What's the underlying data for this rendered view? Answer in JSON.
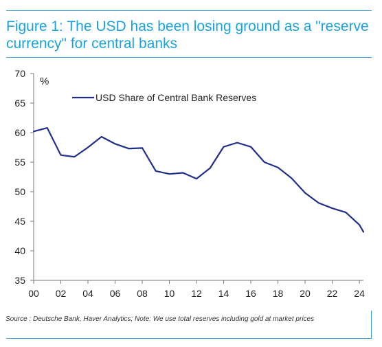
{
  "figure": {
    "title_line_1": "Figure 1: The USD has been losing ground as a \"reserve",
    "title_line_2": "currency\" for central banks",
    "source": "Source : Deutsche Bank, Haver Analytics; Note: We use total reserves including gold at market prices"
  },
  "colors": {
    "series": "#1f2e8c",
    "title": "#19a3df",
    "rule": "#3a9fd8",
    "axis": "#777777"
  },
  "chart_data": {
    "type": "line",
    "title": "",
    "xlabel": "",
    "ylabel": "%",
    "x": [
      0,
      1,
      2,
      3,
      4,
      5,
      6,
      7,
      8,
      9,
      10,
      11,
      12,
      13,
      14,
      15,
      16,
      17,
      18,
      19,
      20,
      21,
      22,
      23,
      24,
      24.3
    ],
    "xtick_values": [
      0,
      2,
      4,
      6,
      8,
      10,
      12,
      14,
      16,
      18,
      20,
      22,
      24
    ],
    "xtick_labels": [
      "00",
      "02",
      "04",
      "06",
      "08",
      "10",
      "12",
      "14",
      "16",
      "18",
      "20",
      "22",
      "24"
    ],
    "xlim": [
      0,
      24.3
    ],
    "ylim": [
      35,
      70
    ],
    "ytick_values": [
      35,
      40,
      45,
      50,
      55,
      60,
      65,
      70
    ],
    "ytick_labels": [
      "35",
      "40",
      "45",
      "50",
      "55",
      "60",
      "65",
      "70"
    ],
    "series": [
      {
        "name": "USD Share of Central Bank Reserves",
        "values": [
          60.2,
          60.8,
          56.2,
          55.9,
          57.5,
          59.3,
          58.1,
          57.3,
          57.4,
          53.5,
          53.0,
          53.2,
          52.2,
          54.0,
          57.6,
          58.3,
          57.6,
          55.0,
          54.1,
          52.3,
          49.8,
          48.1,
          47.2,
          46.5,
          44.4,
          43.2
        ]
      }
    ],
    "legend_position": "top-left",
    "grid": false
  }
}
